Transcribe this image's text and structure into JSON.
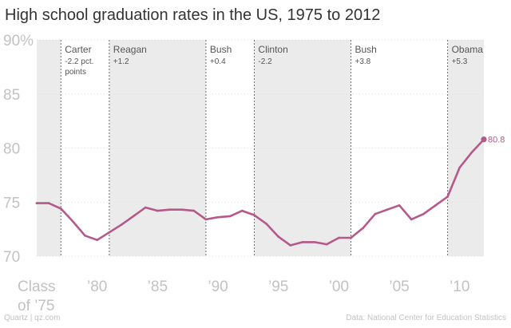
{
  "chart_data": {
    "type": "line",
    "title": "High school graduation rates in the US, 1975 to 2012",
    "xlabel": "",
    "ylabel": "",
    "xlim": [
      1975,
      2012
    ],
    "ylim": [
      70,
      90
    ],
    "y_ticks": [
      {
        "value": 70,
        "label": "70"
      },
      {
        "value": 75,
        "label": "75"
      },
      {
        "value": 80,
        "label": "80"
      },
      {
        "value": 85,
        "label": "85"
      },
      {
        "value": 90,
        "label": "90%"
      }
    ],
    "x_ticks": [
      {
        "value": 1975,
        "label": "Class of ’75"
      },
      {
        "value": 1980,
        "label": "’80"
      },
      {
        "value": 1985,
        "label": "’85"
      },
      {
        "value": 1990,
        "label": "’90"
      },
      {
        "value": 1995,
        "label": "’95"
      },
      {
        "value": 2000,
        "label": "’00"
      },
      {
        "value": 2005,
        "label": "’05"
      },
      {
        "value": 2010,
        "label": "’10"
      }
    ],
    "series": [
      {
        "name": "Graduation rate",
        "color": "#b5588a",
        "x": [
          1975,
          1976,
          1977,
          1978,
          1979,
          1980,
          1981,
          1982,
          1983,
          1984,
          1985,
          1986,
          1987,
          1988,
          1989,
          1990,
          1991,
          1992,
          1993,
          1994,
          1995,
          1996,
          1997,
          1998,
          1999,
          2000,
          2001,
          2002,
          2003,
          2004,
          2005,
          2006,
          2007,
          2008,
          2009,
          2010,
          2011,
          2012
        ],
        "values": [
          74.9,
          74.9,
          74.4,
          73.2,
          71.9,
          71.5,
          72.2,
          72.9,
          73.7,
          74.5,
          74.2,
          74.3,
          74.3,
          74.2,
          73.4,
          73.6,
          73.7,
          74.2,
          73.8,
          73.0,
          71.8,
          71.0,
          71.3,
          71.3,
          71.1,
          71.7,
          71.7,
          72.6,
          73.9,
          74.3,
          74.7,
          73.4,
          73.9,
          74.7,
          75.5,
          78.2,
          79.6,
          80.8
        ]
      }
    ],
    "end_label": "80.8",
    "presidencies": [
      {
        "name": "Carter",
        "change": "-2.2 pct. points",
        "change_line1": "-2.2 pct.",
        "change_line2": "points",
        "start": 1977,
        "end": 1981,
        "shaded": false
      },
      {
        "name": "Reagan",
        "change": "+1.2",
        "start": 1981,
        "end": 1989,
        "shaded": true
      },
      {
        "name": "Bush",
        "change": "+0.4",
        "start": 1989,
        "end": 1993,
        "shaded": false
      },
      {
        "name": "Clinton",
        "change": "-2.2",
        "start": 1993,
        "end": 2001,
        "shaded": true
      },
      {
        "name": "Bush",
        "change": "+3.8",
        "start": 2001,
        "end": 2009,
        "shaded": false
      },
      {
        "name": "Obama",
        "change": "+5.3",
        "start": 2009,
        "end": 2012,
        "shaded": true
      }
    ],
    "pre_period": {
      "start": 1975,
      "end": 1977,
      "shaded": true
    },
    "colors": {
      "shade": "#ebebeb",
      "grid": "#dcdcdc",
      "divider": "#6e6e6e",
      "axis_text": "#c2c2c2",
      "label_text": "#555555"
    }
  },
  "footer": {
    "credit": "Quartz | qz.com",
    "source": "Data: National Center for Education Statistics"
  }
}
